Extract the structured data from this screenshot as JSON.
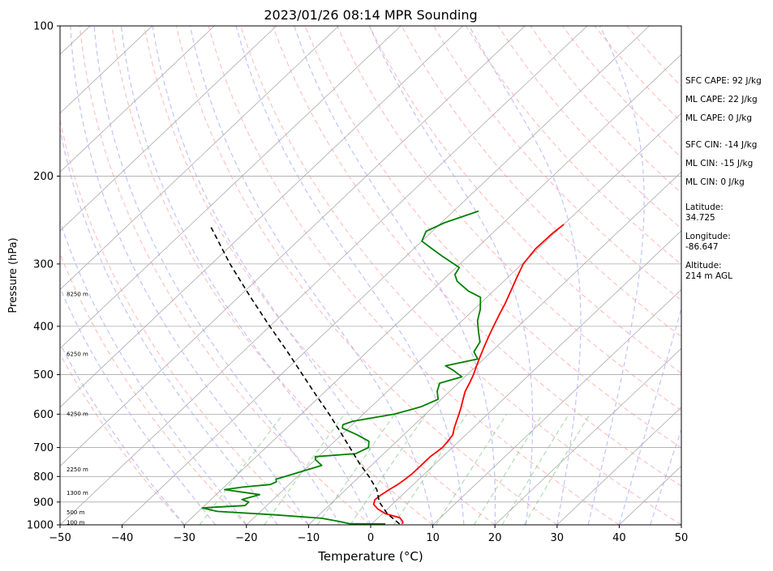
{
  "chart_data": {
    "type": "line",
    "title": "2023/01/26 08:14 MPR Sounding",
    "xlabel": "Temperature (°C)",
    "ylabel": "Pressure (hPa)",
    "xlim": [
      -50,
      50
    ],
    "ylim": [
      1000,
      100
    ],
    "y_scale": "log",
    "grid": true,
    "xticks": [
      -50,
      -40,
      -30,
      -20,
      -10,
      0,
      10,
      20,
      30,
      40,
      50
    ],
    "yticks": [
      100,
      200,
      300,
      400,
      500,
      600,
      700,
      800,
      900,
      1000
    ],
    "series": [
      {
        "color": "#ff0000",
        "points": [
          {
            "p": 996,
            "t": 5.0
          },
          {
            "p": 985,
            "t": 4.6
          },
          {
            "p": 968,
            "t": 3.5
          },
          {
            "p": 950,
            "t": 0.5
          },
          {
            "p": 930,
            "t": -1.5
          },
          {
            "p": 910,
            "t": -3.0
          },
          {
            "p": 890,
            "t": -3.6
          },
          {
            "p": 870,
            "t": -3.4
          },
          {
            "p": 850,
            "t": -3.0
          },
          {
            "p": 830,
            "t": -2.5
          },
          {
            "p": 810,
            "t": -2.2
          },
          {
            "p": 790,
            "t": -2.0
          },
          {
            "p": 760,
            "t": -2.0
          },
          {
            "p": 730,
            "t": -2.0
          },
          {
            "p": 700,
            "t": -1.6
          },
          {
            "p": 680,
            "t": -1.8
          },
          {
            "p": 660,
            "t": -2.1
          },
          {
            "p": 640,
            "t": -3.0
          },
          {
            "p": 620,
            "t": -3.8
          },
          {
            "p": 600,
            "t": -4.6
          },
          {
            "p": 580,
            "t": -5.5
          },
          {
            "p": 560,
            "t": -6.5
          },
          {
            "p": 540,
            "t": -7.5
          },
          {
            "p": 520,
            "t": -8.2
          },
          {
            "p": 500,
            "t": -9.0
          },
          {
            "p": 480,
            "t": -10.0
          },
          {
            "p": 460,
            "t": -11.0
          },
          {
            "p": 440,
            "t": -12.0
          },
          {
            "p": 420,
            "t": -13.0
          },
          {
            "p": 400,
            "t": -14.0
          },
          {
            "p": 380,
            "t": -15.0
          },
          {
            "p": 360,
            "t": -16.0
          },
          {
            "p": 340,
            "t": -17.2
          },
          {
            "p": 320,
            "t": -18.5
          },
          {
            "p": 300,
            "t": -19.8
          },
          {
            "p": 280,
            "t": -20.4
          },
          {
            "p": 260,
            "t": -20.3
          },
          {
            "p": 250,
            "t": -20.0
          }
        ]
      },
      {
        "color": "#008000",
        "points": [
          {
            "p": 996,
            "t": 2.2
          },
          {
            "p": 995,
            "t": -3.5
          },
          {
            "p": 985,
            "t": -5.5
          },
          {
            "p": 970,
            "t": -9.0
          },
          {
            "p": 955,
            "t": -17.0
          },
          {
            "p": 940,
            "t": -27.0
          },
          {
            "p": 925,
            "t": -30.0
          },
          {
            "p": 915,
            "t": -23.5
          },
          {
            "p": 900,
            "t": -23.5
          },
          {
            "p": 890,
            "t": -25.0
          },
          {
            "p": 870,
            "t": -23.0
          },
          {
            "p": 850,
            "t": -29.5
          },
          {
            "p": 840,
            "t": -27.0
          },
          {
            "p": 830,
            "t": -23.0
          },
          {
            "p": 820,
            "t": -22.5
          },
          {
            "p": 810,
            "t": -23.0
          },
          {
            "p": 795,
            "t": -21.5
          },
          {
            "p": 780,
            "t": -20.0
          },
          {
            "p": 770,
            "t": -19.0
          },
          {
            "p": 760,
            "t": -18.0
          },
          {
            "p": 740,
            "t": -20.0
          },
          {
            "p": 730,
            "t": -20.5
          },
          {
            "p": 720,
            "t": -14.5
          },
          {
            "p": 700,
            "t": -13.5
          },
          {
            "p": 680,
            "t": -14.5
          },
          {
            "p": 660,
            "t": -17.5
          },
          {
            "p": 640,
            "t": -21.0
          },
          {
            "p": 630,
            "t": -21.5
          },
          {
            "p": 620,
            "t": -20.5
          },
          {
            "p": 600,
            "t": -15.0
          },
          {
            "p": 580,
            "t": -12.0
          },
          {
            "p": 560,
            "t": -10.5
          },
          {
            "p": 540,
            "t": -12.0
          },
          {
            "p": 520,
            "t": -13.0
          },
          {
            "p": 505,
            "t": -10.5
          },
          {
            "p": 490,
            "t": -13.0
          },
          {
            "p": 480,
            "t": -15.0
          },
          {
            "p": 465,
            "t": -11.0
          },
          {
            "p": 450,
            "t": -12.8
          },
          {
            "p": 430,
            "t": -13.5
          },
          {
            "p": 410,
            "t": -15.5
          },
          {
            "p": 390,
            "t": -17.5
          },
          {
            "p": 370,
            "t": -19.0
          },
          {
            "p": 350,
            "t": -21.0
          },
          {
            "p": 340,
            "t": -24.0
          },
          {
            "p": 325,
            "t": -27.5
          },
          {
            "p": 315,
            "t": -29.0
          },
          {
            "p": 305,
            "t": -29.5
          },
          {
            "p": 290,
            "t": -34.0
          },
          {
            "p": 280,
            "t": -37.0
          },
          {
            "p": 270,
            "t": -40.0
          },
          {
            "p": 258,
            "t": -41.0
          },
          {
            "p": 248,
            "t": -39.5
          },
          {
            "p": 235,
            "t": -36.0
          }
        ]
      },
      {
        "color": "#000000",
        "style": "dashed",
        "points": [
          {
            "p": 996,
            "t": 4.5
          },
          {
            "p": 950,
            "t": 0.8
          },
          {
            "p": 900,
            "t": -2.5
          },
          {
            "p": 850,
            "t": -5.0
          },
          {
            "p": 800,
            "t": -8.5
          },
          {
            "p": 750,
            "t": -12.5
          },
          {
            "p": 700,
            "t": -16.5
          },
          {
            "p": 650,
            "t": -20.8
          },
          {
            "p": 600,
            "t": -25.5
          },
          {
            "p": 550,
            "t": -30.8
          },
          {
            "p": 500,
            "t": -36.5
          },
          {
            "p": 450,
            "t": -42.8
          },
          {
            "p": 400,
            "t": -50.0
          },
          {
            "p": 350,
            "t": -58.0
          },
          {
            "p": 300,
            "t": -67.0
          },
          {
            "p": 250,
            "t": -77.0
          }
        ]
      }
    ],
    "height_labels": [
      {
        "label": "100 m",
        "p": 990
      },
      {
        "label": "500 m",
        "p": 945
      },
      {
        "label": "1300 m",
        "p": 865
      },
      {
        "label": "2250 m",
        "p": 775
      },
      {
        "label": "4250 m",
        "p": 600
      },
      {
        "label": "6250 m",
        "p": 455
      },
      {
        "label": "8250 m",
        "p": 345
      }
    ]
  },
  "stats": [
    {
      "key": "sfc_cape",
      "text": "SFC CAPE: 92 J/kg"
    },
    {
      "key": "ml_cape",
      "text": "ML CAPE: 22 J/kg"
    },
    {
      "key": "ml_cape2",
      "text": "ML CAPE: 0 J/kg"
    },
    {
      "key": "sfc_cin",
      "text": "SFC CIN: -14 J/kg"
    },
    {
      "key": "ml_cin",
      "text": "ML CIN: -15 J/kg"
    },
    {
      "key": "ml_cin2",
      "text": "ML CIN: 0 J/kg"
    },
    {
      "key": "latitude",
      "text": "Latitude:\n34.725"
    },
    {
      "key": "longitude",
      "text": "Longitude:\n-86.647"
    },
    {
      "key": "altitude",
      "text": "Altitude:\n214 m AGL"
    }
  ]
}
